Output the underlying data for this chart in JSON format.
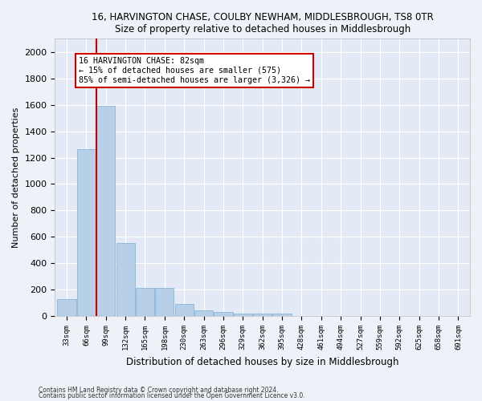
{
  "title": "16, HARVINGTON CHASE, COULBY NEWHAM, MIDDLESBROUGH, TS8 0TR",
  "subtitle": "Size of property relative to detached houses in Middlesbrough",
  "xlabel": "Distribution of detached houses by size in Middlesbrough",
  "ylabel": "Number of detached properties",
  "bar_labels": [
    "33sqm",
    "66sqm",
    "99sqm",
    "132sqm",
    "165sqm",
    "198sqm",
    "230sqm",
    "263sqm",
    "296sqm",
    "329sqm",
    "362sqm",
    "395sqm",
    "428sqm",
    "461sqm",
    "494sqm",
    "527sqm",
    "559sqm",
    "592sqm",
    "625sqm",
    "658sqm",
    "691sqm"
  ],
  "bar_values": [
    130,
    1265,
    1590,
    555,
    215,
    215,
    90,
    45,
    30,
    20,
    18,
    18,
    0,
    0,
    0,
    0,
    0,
    0,
    0,
    0,
    0
  ],
  "bar_color": "#b8cfe8",
  "bar_edge_color": "#7aaed4",
  "ylim": [
    0,
    2100
  ],
  "yticks": [
    0,
    200,
    400,
    600,
    800,
    1000,
    1200,
    1400,
    1600,
    1800,
    2000
  ],
  "vline_x": 1.5,
  "vline_color": "#cc0000",
  "annotation_line1": "16 HARVINGTON CHASE: 82sqm",
  "annotation_line2": "← 15% of detached houses are smaller (575)",
  "annotation_line3": "85% of semi-detached houses are larger (3,326) →",
  "background_color": "#eef2f8",
  "plot_bg_color": "#e4eaf5",
  "footer_line1": "Contains HM Land Registry data © Crown copyright and database right 2024.",
  "footer_line2": "Contains public sector information licensed under the Open Government Licence v3.0."
}
